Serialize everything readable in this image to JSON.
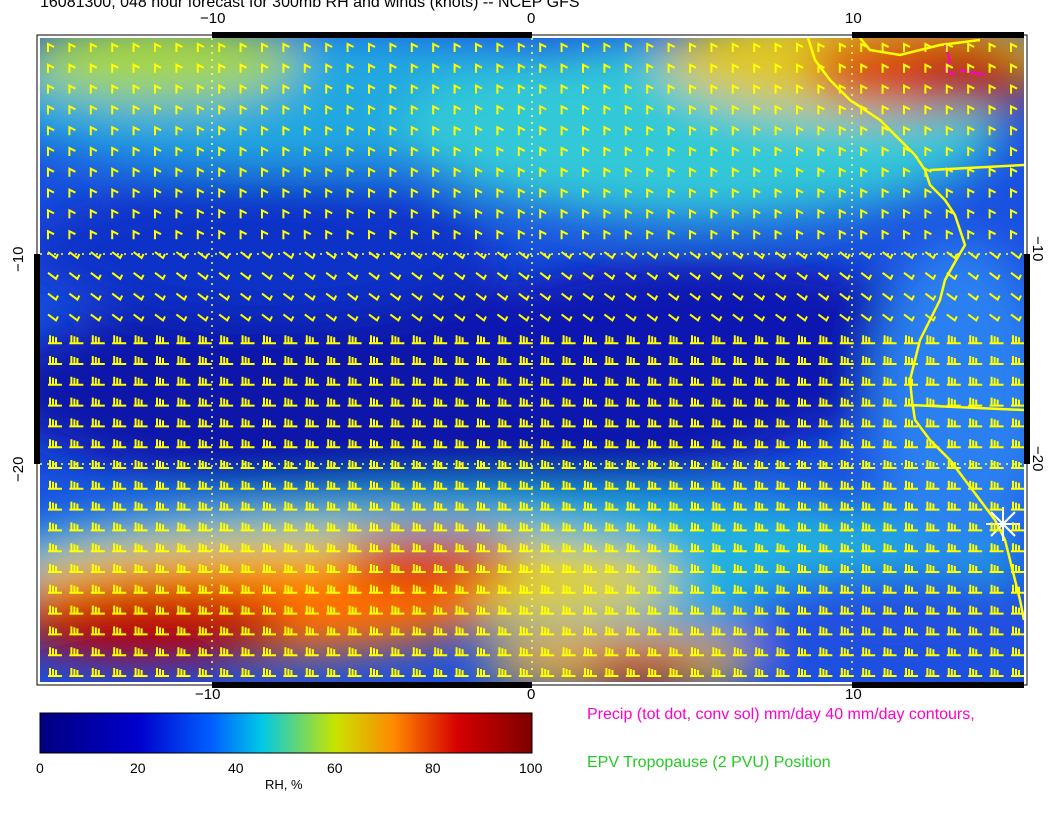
{
  "title": "16081300, 048 hour forecast for 300mb RH and winds (knots) -- NCEP GFS",
  "axes": {
    "x_ticks": [
      "−10",
      "0",
      "10"
    ],
    "y_ticks": [
      "−10",
      "−20"
    ]
  },
  "colorbar": {
    "labels": [
      "0",
      "20",
      "40",
      "60",
      "80",
      "100"
    ],
    "title": "RH, %",
    "colors": [
      "#00007f",
      "#0000cc",
      "#0060ff",
      "#00c8e8",
      "#c8e400",
      "#ff8800",
      "#d40000",
      "#7f0000"
    ]
  },
  "legend": {
    "precip": "Precip (tot dot, conv sol) mm/day 40 mm/day contours,",
    "epv": "EPV Tropopause (2 PVU) Position"
  },
  "colors": {
    "barb": "#ffff00",
    "coast": "#ffff00",
    "grid": "#ffff66",
    "precip": "#ff00cc",
    "epv": "#22cc22"
  }
}
